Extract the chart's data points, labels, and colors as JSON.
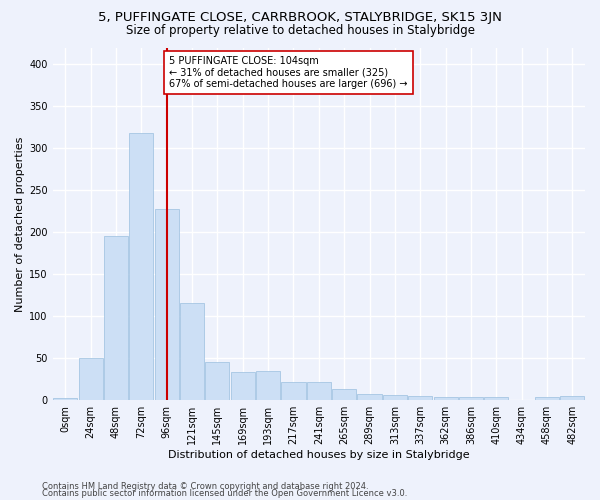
{
  "title": "5, PUFFINGATE CLOSE, CARRBROOK, STALYBRIDGE, SK15 3JN",
  "subtitle": "Size of property relative to detached houses in Stalybridge",
  "xlabel": "Distribution of detached houses by size in Stalybridge",
  "ylabel": "Number of detached properties",
  "bar_color": "#ccdff5",
  "bar_edgecolor": "#9bbfdf",
  "vline_x": 4,
  "vline_color": "#cc0000",
  "annotation_text": "5 PUFFINGATE CLOSE: 104sqm\n← 31% of detached houses are smaller (325)\n67% of semi-detached houses are larger (696) →",
  "footer1": "Contains HM Land Registry data © Crown copyright and database right 2024.",
  "footer2": "Contains public sector information licensed under the Open Government Licence v3.0.",
  "bin_labels": [
    "0sqm",
    "24sqm",
    "48sqm",
    "72sqm",
    "96sqm",
    "121sqm",
    "145sqm",
    "169sqm",
    "193sqm",
    "217sqm",
    "241sqm",
    "265sqm",
    "289sqm",
    "313sqm",
    "337sqm",
    "362sqm",
    "386sqm",
    "410sqm",
    "434sqm",
    "458sqm",
    "482sqm"
  ],
  "bar_heights": [
    3,
    50,
    195,
    318,
    228,
    116,
    45,
    33,
    35,
    22,
    22,
    13,
    7,
    6,
    5,
    4,
    4,
    4,
    0,
    4,
    5
  ],
  "vline_bar_index": 4,
  "ylim": [
    0,
    420
  ],
  "yticks": [
    0,
    50,
    100,
    150,
    200,
    250,
    300,
    350,
    400
  ],
  "background_color": "#eef2fc",
  "grid_color": "#ffffff",
  "title_fontsize": 9.5,
  "subtitle_fontsize": 8.5,
  "tick_fontsize": 7,
  "xlabel_fontsize": 8,
  "ylabel_fontsize": 8,
  "annotation_fontsize": 7,
  "footer_fontsize": 6
}
